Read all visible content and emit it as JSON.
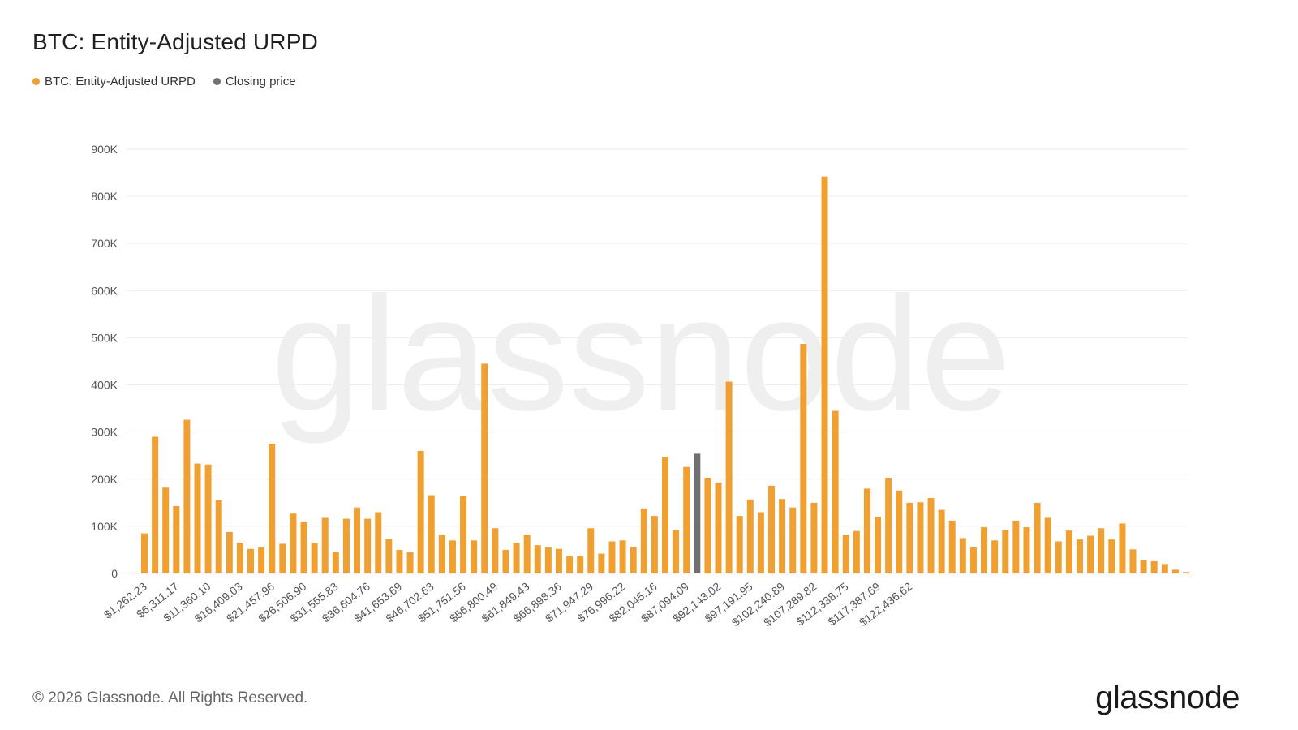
{
  "title": "BTC: Entity-Adjusted URPD",
  "legend": [
    {
      "label": "BTC: Entity-Adjusted URPD",
      "color": "#f0a030"
    },
    {
      "label": "Closing price",
      "color": "#707070"
    }
  ],
  "watermark": "glassnode",
  "footer": "© 2026 Glassnode. All Rights Reserved.",
  "brand": "glassnode",
  "chart_data": {
    "type": "bar",
    "title": "BTC: Entity-Adjusted URPD",
    "xlabel": "",
    "ylabel": "",
    "ylim": [
      0,
      900000
    ],
    "yticks": [
      0,
      100000,
      200000,
      300000,
      400000,
      500000,
      600000,
      700000,
      800000,
      900000
    ],
    "ytick_labels": [
      "0",
      "100K",
      "200K",
      "300K",
      "400K",
      "500K",
      "600K",
      "700K",
      "800K",
      "900K"
    ],
    "grid": true,
    "legend_position": "top-left",
    "bar_color": "#f0a030",
    "highlight_color": "#707070",
    "highlight_index": 52,
    "xtick_labels": [
      {
        "index": 0,
        "label": "$1,262.23"
      },
      {
        "index": 3,
        "label": "$6,311.17"
      },
      {
        "index": 6,
        "label": "$11,360.10"
      },
      {
        "index": 9,
        "label": "$16,409.03"
      },
      {
        "index": 12,
        "label": "$21,457.96"
      },
      {
        "index": 15,
        "label": "$26,506.90"
      },
      {
        "index": 18,
        "label": "$31,555.83"
      },
      {
        "index": 21,
        "label": "$36,604.76"
      },
      {
        "index": 24,
        "label": "$41,653.69"
      },
      {
        "index": 27,
        "label": "$46,702.63"
      },
      {
        "index": 30,
        "label": "$51,751.56"
      },
      {
        "index": 33,
        "label": "$56,800.49"
      },
      {
        "index": 36,
        "label": "$61,849.43"
      },
      {
        "index": 39,
        "label": "$66,898.36"
      },
      {
        "index": 42,
        "label": "$71,947.29"
      },
      {
        "index": 45,
        "label": "$76,996.22"
      },
      {
        "index": 48,
        "label": "$82,045.16"
      },
      {
        "index": 51,
        "label": "$87,094.09"
      },
      {
        "index": 54,
        "label": "$92,143.02"
      },
      {
        "index": 57,
        "label": "$97,191.95"
      },
      {
        "index": 60,
        "label": "$102,240.89"
      },
      {
        "index": 63,
        "label": "$107,289.82"
      },
      {
        "index": 66,
        "label": "$112,338.75"
      },
      {
        "index": 69,
        "label": "$117,387.69"
      },
      {
        "index": 72,
        "label": "$122,436.62"
      }
    ],
    "values": [
      85000,
      290000,
      182000,
      143000,
      326000,
      233000,
      231000,
      155000,
      88000,
      65000,
      52000,
      55000,
      275000,
      63000,
      127000,
      110000,
      65000,
      118000,
      45000,
      116000,
      140000,
      116000,
      130000,
      74000,
      50000,
      45000,
      260000,
      166000,
      82000,
      70000,
      164000,
      70000,
      445000,
      96000,
      50000,
      65000,
      82000,
      60000,
      55000,
      52000,
      36000,
      37000,
      96000,
      42000,
      68000,
      70000,
      56000,
      138000,
      122000,
      246000,
      92000,
      226000,
      254000,
      203000,
      193000,
      407000,
      122000,
      157000,
      130000,
      186000,
      158000,
      140000,
      487000,
      150000,
      842000,
      345000,
      82000,
      90000,
      180000,
      120000,
      203000,
      176000,
      150000,
      151000,
      160000,
      135000,
      112000,
      75000,
      55000,
      98000,
      70000,
      92000,
      112000,
      98000,
      150000,
      118000,
      68000,
      91000,
      72000,
      80000,
      96000,
      72000,
      106000,
      51000,
      28000,
      26000,
      20000,
      8000,
      3000
    ]
  }
}
